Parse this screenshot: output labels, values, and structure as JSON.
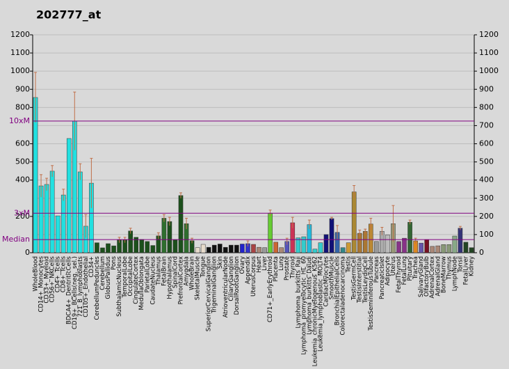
{
  "chart_data": {
    "type": "bar",
    "title": "202777_at",
    "categories": [
      "WholeBlood",
      "CD14+_Monocytes",
      "CD33+_Myeloid",
      "CD56+_NKCells",
      "CD4+_Tcells",
      "CD8+_Tcells",
      "BDCA4+_DentriticCells",
      "CD19+_BCells(neg._sel.)",
      "721_B_lymphoblasts",
      "CD105+_Endothelial",
      "CD34+",
      "CerebellumPeduncles",
      "Cerebellum",
      "GlobusPallidus",
      "Pons",
      "SubthalamicNucleus",
      "TemporalLobe",
      "OccipitalLobe",
      "CingulateCortex",
      "MedullaOblongata",
      "ParietalLobe",
      "CaudateNucleus",
      "Thalamus",
      "FetalBrain",
      "Hypothalamus",
      "SpinalCord",
      "PrefrontalCortex",
      "Amygdala",
      "WholeBrain",
      "SkeletalMuscle",
      "Tongue",
      "SuperiorCervicalGanglion",
      "TrigeminalGanglion",
      "Skin",
      "AtrioventricularNode",
      "CiliaryGanglion",
      "DorsalRootGanglion",
      "Ovary",
      "Appendix",
      "UterusCorpus",
      "Heart",
      "Liver",
      "CD71+_EarlyErythroid",
      "Placenta",
      "Lung",
      "Prostate",
      "Thyroid",
      "Lymphoma_burkitts_Raji",
      "Lymphoma_promyelocytic_HL_60",
      "Lymphoma_burkitts_Daudi",
      "Leukemia_chronicMyelogenous_K562",
      "Leukemia_lymphoblastic_MOLT4",
      "CardiacMyocytes",
      "SmoothMuscle",
      "BronchialEpithelialCells",
      "Colorectaladenocarcinoma",
      "Testis",
      "TestisGermCell",
      "TestisInterstitial",
      "TestisLeydigCell",
      "TestisSeminiferousTubule",
      "Pancreas",
      "PancreaticIslet",
      "Adipocyte",
      "Uterus",
      "FetalThyroid",
      "FetalLung",
      "Pituitary",
      "Trachea",
      "SalivaryGland",
      "OlfactoryBulb",
      "AdrenalCortex",
      "AdrenalGland",
      "BoneMarrow",
      "Thymus",
      "LymphNode",
      "Tonsil",
      "FetalLiver",
      "Kidney"
    ],
    "values": [
      855,
      368,
      376,
      449,
      203,
      318,
      629,
      725,
      445,
      146,
      383,
      55,
      27,
      50,
      38,
      70,
      70,
      120,
      85,
      73,
      62,
      40,
      93,
      190,
      172,
      72,
      315,
      160,
      66,
      28,
      46,
      30,
      42,
      48,
      30,
      42,
      42,
      48,
      50,
      46,
      30,
      28,
      218,
      58,
      28,
      62,
      165,
      82,
      88,
      155,
      20,
      55,
      100,
      188,
      112,
      28,
      55,
      335,
      107,
      118,
      158,
      62,
      118,
      98,
      160,
      62,
      80,
      168,
      65,
      53,
      72,
      35,
      38,
      45,
      45,
      92,
      135,
      58,
      28
    ],
    "errors": [
      138,
      62,
      34,
      31,
      null,
      32,
      null,
      160,
      45,
      64,
      137,
      null,
      null,
      null,
      null,
      15,
      15,
      15,
      null,
      null,
      null,
      null,
      17,
      20,
      23,
      null,
      15,
      30,
      14,
      null,
      null,
      null,
      null,
      null,
      null,
      null,
      null,
      null,
      15,
      null,
      null,
      null,
      17,
      null,
      null,
      18,
      30,
      null,
      null,
      25,
      null,
      null,
      null,
      7,
      38,
      null,
      null,
      35,
      18,
      12,
      32,
      null,
      22,
      null,
      100,
      null,
      null,
      12,
      15,
      null,
      null,
      null,
      null,
      null,
      null,
      null,
      10,
      null,
      null
    ],
    "colors": [
      "#22e0e0",
      "#22e0e0",
      "#22e0e0",
      "#22e0e0",
      "#22e0e0",
      "#22e0e0",
      "#22e0e0",
      "#22e0e0",
      "#22e0e0",
      "#22e0e0",
      "#22e0e0",
      "#1c501c",
      "#1c501c",
      "#1c501c",
      "#1c501c",
      "#1c501c",
      "#1c501c",
      "#1c501c",
      "#1c501c",
      "#1c501c",
      "#1c501c",
      "#1c501c",
      "#1c501c",
      "#2e6e2e",
      "#1c501c",
      "#1c501c",
      "#1c501c",
      "#2e6e2e",
      "#1c501c",
      "#e8dccc",
      "#e8dccc",
      "#111111",
      "#111111",
      "#111111",
      "#111111",
      "#111111",
      "#111111",
      "#2222cc",
      "#3333cc",
      "#aa4444",
      "#aa8877",
      "#999999",
      "#66cc33",
      "#cc6633",
      "#aa8877",
      "#5555bb",
      "#cc3355",
      "#33cccc",
      "#33cccc",
      "#22bbdd",
      "#33cccc",
      "#33cccc",
      "#111177",
      "#111177",
      "#3366aa",
      "#338888",
      "#cc9933",
      "#aa8833",
      "#aa7733",
      "#aa7733",
      "#bb8833",
      "#999999",
      "#aaaaaa",
      "#bbbbbb",
      "#999977",
      "#883388",
      "#883388",
      "#336633",
      "#dd8822",
      "#6655aa",
      "#771122",
      "#aa8877",
      "#aa8877",
      "#889977",
      "#889977",
      "#88aa88",
      "#333377",
      "#224422",
      "#224422"
    ],
    "ylim": [
      0,
      1200
    ],
    "yticks": [
      0,
      200,
      400,
      500,
      600,
      800,
      900,
      1000,
      1100,
      1200
    ],
    "y2lim": [
      0,
      1200
    ],
    "y2ticks": [
      0,
      100,
      200,
      300,
      400,
      500,
      600,
      700,
      800,
      900,
      1000,
      1100,
      1200
    ],
    "reference_lines": [
      {
        "label": "Median",
        "value": 72.5
      },
      {
        "label": "3xM",
        "value": 217.5
      },
      {
        "label": "10xM",
        "value": 725
      }
    ],
    "grid": true
  }
}
